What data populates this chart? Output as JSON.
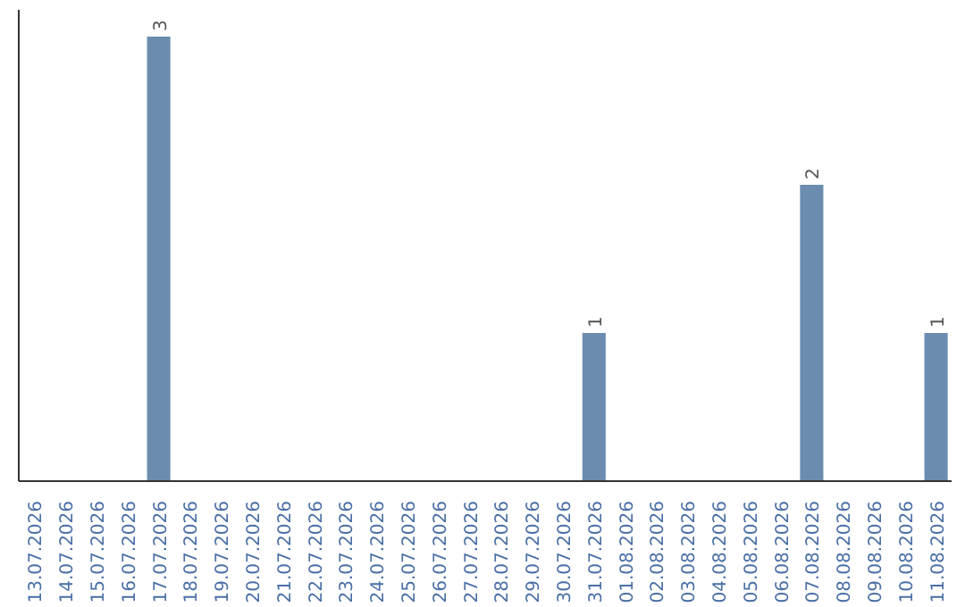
{
  "chart_data": {
    "type": "bar",
    "categories": [
      "13.07.2026",
      "14.07.2026",
      "15.07.2026",
      "16.07.2026",
      "17.07.2026",
      "18.07.2026",
      "19.07.2026",
      "20.07.2026",
      "21.07.2026",
      "22.07.2026",
      "23.07.2026",
      "24.07.2026",
      "25.07.2026",
      "26.07.2026",
      "27.07.2026",
      "28.07.2026",
      "29.07.2026",
      "30.07.2026",
      "31.07.2026",
      "01.08.2026",
      "02.08.2026",
      "03.08.2026",
      "04.08.2026",
      "05.08.2026",
      "06.08.2026",
      "07.08.2026",
      "08.08.2026",
      "09.08.2026",
      "10.08.2026",
      "11.08.2026"
    ],
    "values": [
      0,
      0,
      0,
      0,
      3,
      0,
      0,
      0,
      0,
      0,
      0,
      0,
      0,
      0,
      0,
      0,
      0,
      0,
      1,
      0,
      0,
      0,
      0,
      0,
      0,
      2,
      0,
      0,
      0,
      1
    ],
    "value_labels": [
      null,
      null,
      null,
      null,
      "3",
      null,
      null,
      null,
      null,
      null,
      null,
      null,
      null,
      null,
      null,
      null,
      null,
      null,
      "1",
      null,
      null,
      null,
      null,
      null,
      null,
      "2",
      null,
      null,
      null,
      "1"
    ],
    "color": "#6b8cae",
    "grid": false,
    "tick_labels": "x"
  }
}
